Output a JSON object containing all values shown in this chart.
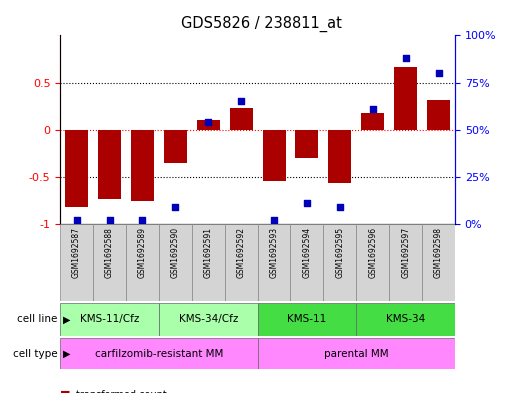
{
  "title": "GDS5826 / 238811_at",
  "samples": [
    "GSM1692587",
    "GSM1692588",
    "GSM1692589",
    "GSM1692590",
    "GSM1692591",
    "GSM1692592",
    "GSM1692593",
    "GSM1692594",
    "GSM1692595",
    "GSM1692596",
    "GSM1692597",
    "GSM1692598"
  ],
  "transformed_count": [
    -0.82,
    -0.73,
    -0.76,
    -0.35,
    0.1,
    0.23,
    -0.54,
    -0.3,
    -0.56,
    0.18,
    0.66,
    0.32
  ],
  "percentile_rank": [
    2,
    2,
    2,
    9,
    54,
    65,
    2,
    11,
    9,
    61,
    88,
    80
  ],
  "cell_lines": [
    {
      "label": "KMS-11/Cfz",
      "start": 0,
      "end": 3,
      "color": "#AAFFAA"
    },
    {
      "label": "KMS-34/Cfz",
      "start": 3,
      "end": 6,
      "color": "#AAFFAA"
    },
    {
      "label": "KMS-11",
      "start": 6,
      "end": 9,
      "color": "#44DD44"
    },
    {
      "label": "KMS-34",
      "start": 9,
      "end": 12,
      "color": "#44DD44"
    }
  ],
  "cell_types": [
    {
      "label": "carfilzomib-resistant MM",
      "start": 0,
      "end": 6,
      "color": "#FF88FF"
    },
    {
      "label": "parental MM",
      "start": 6,
      "end": 12,
      "color": "#FF88FF"
    }
  ],
  "bar_color": "#AA0000",
  "dot_color": "#0000BB",
  "ylim_left": [
    -1.0,
    1.0
  ],
  "ylim_right": [
    0,
    100
  ],
  "yticks_left": [
    -1,
    -0.5,
    0,
    0.5
  ],
  "ytick_labels_left": [
    "-1",
    "-0.5",
    "0",
    "0.5"
  ],
  "yticks_right": [
    0,
    25,
    50,
    75,
    100
  ],
  "ytick_labels_right": [
    "0%",
    "25%",
    "50%",
    "75%",
    "100%"
  ],
  "hlines_black": [
    -0.5,
    0.5
  ],
  "hline_red": 0,
  "legend_tc_color": "#AA0000",
  "legend_pr_color": "#0000BB",
  "label_cell_line": "cell line",
  "label_cell_type": "cell type",
  "box_color": "#D4D4D4",
  "box_edge_color": "#888888"
}
